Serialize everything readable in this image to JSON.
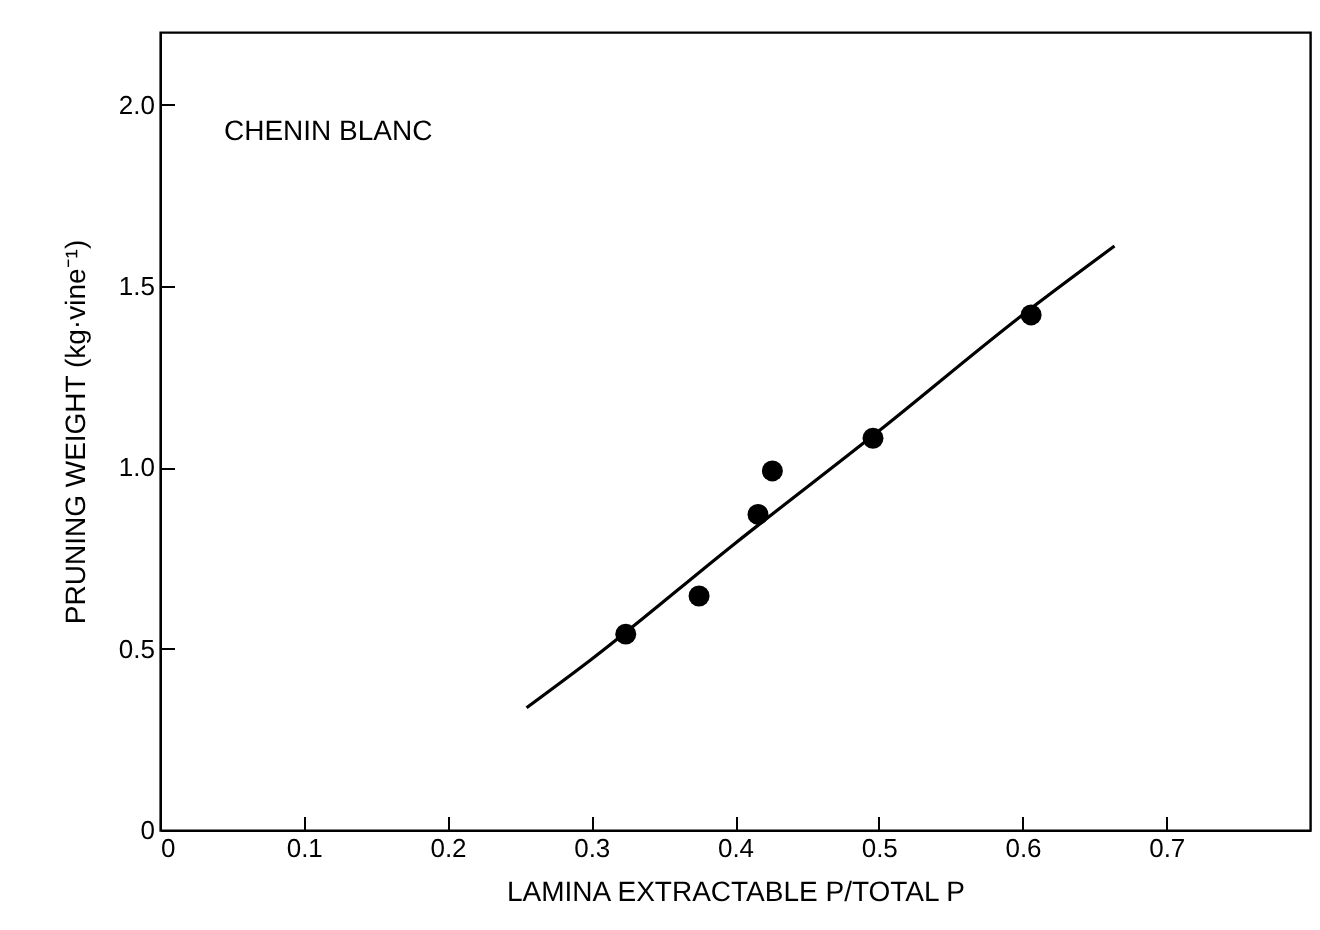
{
  "chart_data": {
    "type": "scatter",
    "title": "CHENIN BLANC",
    "xlabel": "LAMINA EXTRACTABLE P/TOTAL P",
    "ylabel": "PRUNING WEIGHT (kg·vine⁻¹)",
    "x": [
      0.324,
      0.375,
      0.416,
      0.426,
      0.496,
      0.606
    ],
    "series": [
      {
        "color": "#000000",
        "marker": "circle",
        "values": [
          0.54,
          0.645,
          0.87,
          0.99,
          1.08,
          1.42
        ]
      },
      {
        "type": "line",
        "color": "#000000",
        "marker": "none",
        "x": [
          0.255,
          0.3,
          0.4,
          0.5,
          0.6,
          0.664
        ],
        "values": [
          0.337,
          0.47,
          0.79,
          1.1,
          1.42,
          1.61
        ]
      }
    ],
    "xlim": [
      0,
      0.8
    ],
    "xticks": [
      0,
      0.1,
      0.2,
      0.3,
      0.4,
      0.5,
      0.6,
      0.7
    ],
    "ylim": [
      0,
      2.2
    ],
    "yticks": [
      0,
      0.5,
      {
        "value": 1,
        "label": "1.0"
      },
      1.5,
      {
        "value": 2,
        "label": "2.0"
      }
    ],
    "grid": false
  }
}
